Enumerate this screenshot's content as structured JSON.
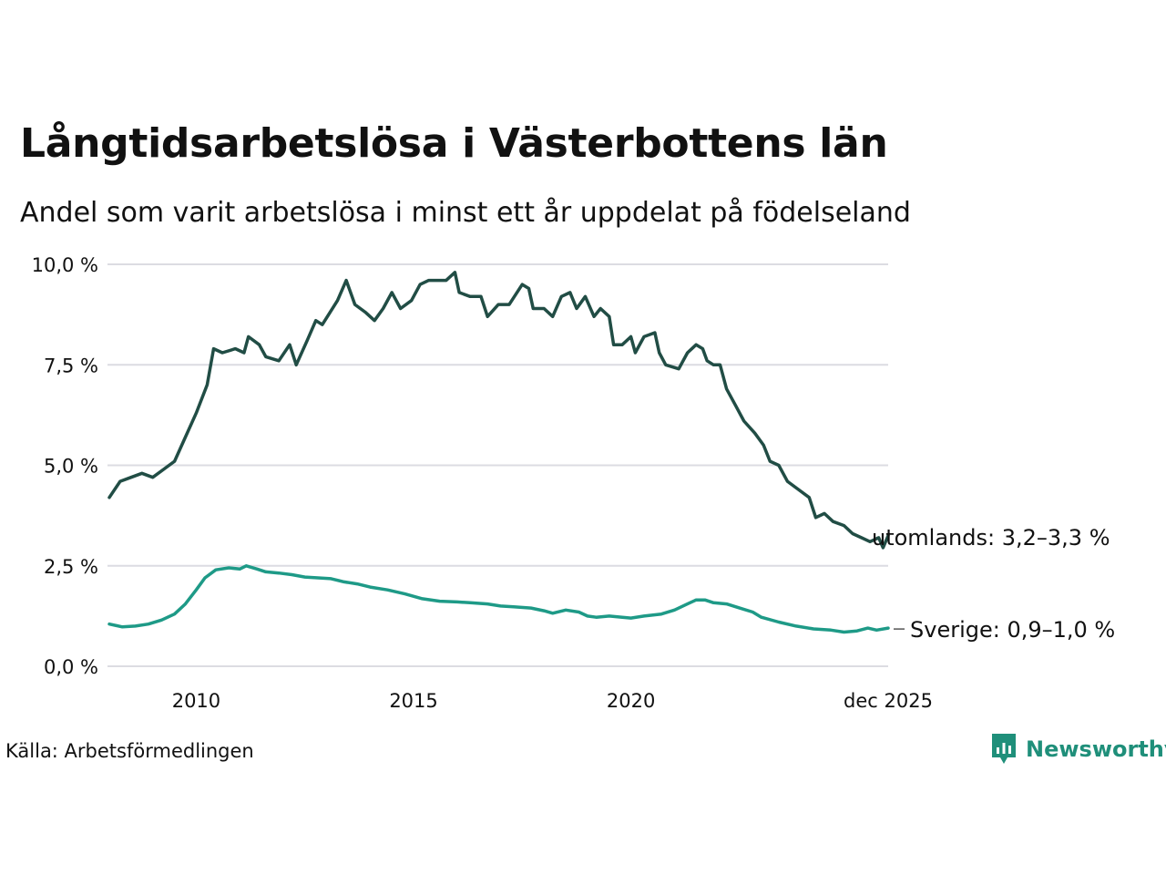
{
  "title": "Långtidsarbetslösa i Västerbottens län",
  "subtitle": "Andel som varit arbetslösa i minst ett år uppdelat på födelseland",
  "source": "Källa: Arbetsförmedlingen",
  "logo": {
    "text": "Newsworthy",
    "color": "#1f8f7a"
  },
  "chart_data": {
    "type": "line",
    "ylim": [
      0,
      10
    ],
    "y_ticks": [
      0,
      2.5,
      5,
      7.5,
      10
    ],
    "y_tick_labels": [
      "0,0 %",
      "2,5 %",
      "5,0 %",
      "7,5 %",
      "10,0 %"
    ],
    "x_range": [
      2008.0,
      2025.917
    ],
    "x_ticks": [
      2010,
      2015,
      2020,
      2025.917
    ],
    "x_tick_labels": [
      "2010",
      "2015",
      "2020",
      "dec 2025"
    ],
    "grid": true,
    "series": [
      {
        "name": "utomlands",
        "label": "utomlands: 3,2–3,3 %",
        "color": "#214d45",
        "points": [
          [
            2008.0,
            4.2
          ],
          [
            2008.25,
            4.6
          ],
          [
            2008.5,
            4.7
          ],
          [
            2008.75,
            4.8
          ],
          [
            2009.0,
            4.7
          ],
          [
            2009.25,
            4.9
          ],
          [
            2009.5,
            5.1
          ],
          [
            2009.75,
            5.7
          ],
          [
            2010.0,
            6.3
          ],
          [
            2010.25,
            7.0
          ],
          [
            2010.4,
            7.9
          ],
          [
            2010.6,
            7.8
          ],
          [
            2010.9,
            7.9
          ],
          [
            2011.1,
            7.8
          ],
          [
            2011.2,
            8.2
          ],
          [
            2011.45,
            8.0
          ],
          [
            2011.6,
            7.7
          ],
          [
            2011.9,
            7.6
          ],
          [
            2012.15,
            8.0
          ],
          [
            2012.3,
            7.5
          ],
          [
            2012.55,
            8.1
          ],
          [
            2012.75,
            8.6
          ],
          [
            2012.9,
            8.5
          ],
          [
            2013.25,
            9.1
          ],
          [
            2013.45,
            9.6
          ],
          [
            2013.65,
            9.0
          ],
          [
            2013.9,
            8.8
          ],
          [
            2014.1,
            8.6
          ],
          [
            2014.3,
            8.9
          ],
          [
            2014.5,
            9.3
          ],
          [
            2014.7,
            8.9
          ],
          [
            2014.95,
            9.1
          ],
          [
            2015.15,
            9.5
          ],
          [
            2015.35,
            9.6
          ],
          [
            2015.75,
            9.6
          ],
          [
            2015.95,
            9.8
          ],
          [
            2016.05,
            9.3
          ],
          [
            2016.3,
            9.2
          ],
          [
            2016.55,
            9.2
          ],
          [
            2016.7,
            8.7
          ],
          [
            2016.95,
            9.0
          ],
          [
            2017.2,
            9.0
          ],
          [
            2017.5,
            9.5
          ],
          [
            2017.65,
            9.4
          ],
          [
            2017.75,
            8.9
          ],
          [
            2018.0,
            8.9
          ],
          [
            2018.2,
            8.7
          ],
          [
            2018.4,
            9.2
          ],
          [
            2018.6,
            9.3
          ],
          [
            2018.75,
            8.9
          ],
          [
            2018.95,
            9.2
          ],
          [
            2019.15,
            8.7
          ],
          [
            2019.3,
            8.9
          ],
          [
            2019.5,
            8.7
          ],
          [
            2019.6,
            8.0
          ],
          [
            2019.8,
            8.0
          ],
          [
            2020.0,
            8.2
          ],
          [
            2020.1,
            7.8
          ],
          [
            2020.3,
            8.2
          ],
          [
            2020.55,
            8.3
          ],
          [
            2020.65,
            7.8
          ],
          [
            2020.8,
            7.5
          ],
          [
            2021.1,
            7.4
          ],
          [
            2021.3,
            7.8
          ],
          [
            2021.5,
            8.0
          ],
          [
            2021.65,
            7.9
          ],
          [
            2021.75,
            7.6
          ],
          [
            2021.9,
            7.5
          ],
          [
            2022.05,
            7.5
          ],
          [
            2022.2,
            6.9
          ],
          [
            2022.4,
            6.5
          ],
          [
            2022.6,
            6.1
          ],
          [
            2022.85,
            5.8
          ],
          [
            2023.05,
            5.5
          ],
          [
            2023.2,
            5.1
          ],
          [
            2023.4,
            5.0
          ],
          [
            2023.6,
            4.6
          ],
          [
            2023.85,
            4.4
          ],
          [
            2024.1,
            4.2
          ],
          [
            2024.25,
            3.7
          ],
          [
            2024.45,
            3.8
          ],
          [
            2024.65,
            3.6
          ],
          [
            2024.9,
            3.5
          ],
          [
            2025.1,
            3.3
          ],
          [
            2025.3,
            3.2
          ],
          [
            2025.5,
            3.1
          ],
          [
            2025.7,
            3.2
          ],
          [
            2025.8,
            2.95
          ],
          [
            2025.917,
            3.25
          ]
        ]
      },
      {
        "name": "Sverige",
        "label": "Sverige: 0,9–1,0 %",
        "color": "#1e9a87",
        "points": [
          [
            2008.0,
            1.05
          ],
          [
            2008.3,
            0.98
          ],
          [
            2008.6,
            1.0
          ],
          [
            2008.9,
            1.05
          ],
          [
            2009.2,
            1.15
          ],
          [
            2009.5,
            1.3
          ],
          [
            2009.75,
            1.55
          ],
          [
            2010.0,
            1.9
          ],
          [
            2010.2,
            2.2
          ],
          [
            2010.45,
            2.4
          ],
          [
            2010.75,
            2.45
          ],
          [
            2011.0,
            2.42
          ],
          [
            2011.15,
            2.5
          ],
          [
            2011.4,
            2.42
          ],
          [
            2011.6,
            2.35
          ],
          [
            2011.9,
            2.32
          ],
          [
            2012.2,
            2.28
          ],
          [
            2012.5,
            2.22
          ],
          [
            2012.8,
            2.2
          ],
          [
            2013.1,
            2.18
          ],
          [
            2013.4,
            2.1
          ],
          [
            2013.7,
            2.05
          ],
          [
            2014.0,
            1.97
          ],
          [
            2014.4,
            1.9
          ],
          [
            2014.8,
            1.8
          ],
          [
            2015.2,
            1.68
          ],
          [
            2015.6,
            1.62
          ],
          [
            2016.0,
            1.6
          ],
          [
            2016.3,
            1.58
          ],
          [
            2016.7,
            1.55
          ],
          [
            2017.0,
            1.5
          ],
          [
            2017.3,
            1.48
          ],
          [
            2017.7,
            1.45
          ],
          [
            2018.0,
            1.38
          ],
          [
            2018.2,
            1.32
          ],
          [
            2018.5,
            1.4
          ],
          [
            2018.8,
            1.35
          ],
          [
            2019.0,
            1.25
          ],
          [
            2019.2,
            1.22
          ],
          [
            2019.5,
            1.25
          ],
          [
            2019.8,
            1.22
          ],
          [
            2020.0,
            1.2
          ],
          [
            2020.3,
            1.25
          ],
          [
            2020.7,
            1.3
          ],
          [
            2021.0,
            1.4
          ],
          [
            2021.3,
            1.55
          ],
          [
            2021.5,
            1.65
          ],
          [
            2021.7,
            1.65
          ],
          [
            2021.9,
            1.58
          ],
          [
            2022.2,
            1.55
          ],
          [
            2022.5,
            1.45
          ],
          [
            2022.8,
            1.35
          ],
          [
            2023.0,
            1.22
          ],
          [
            2023.4,
            1.1
          ],
          [
            2023.8,
            1.0
          ],
          [
            2024.2,
            0.93
          ],
          [
            2024.6,
            0.9
          ],
          [
            2024.9,
            0.85
          ],
          [
            2025.2,
            0.88
          ],
          [
            2025.45,
            0.95
          ],
          [
            2025.65,
            0.9
          ],
          [
            2025.917,
            0.95
          ]
        ]
      }
    ]
  }
}
